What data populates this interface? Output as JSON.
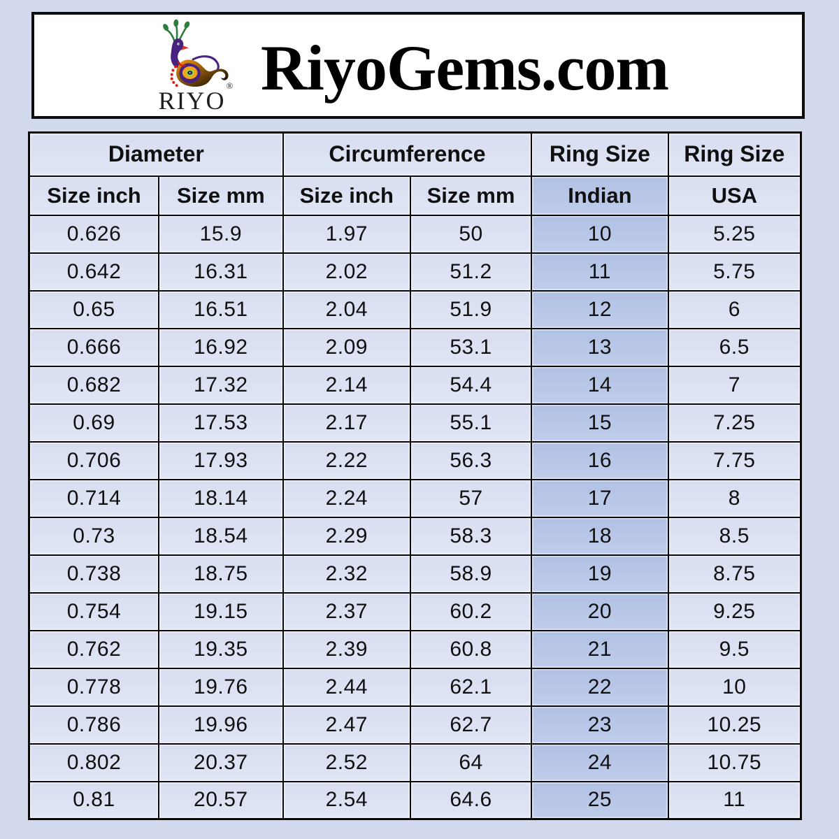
{
  "header": {
    "title": "RiyoGems.com",
    "logo": {
      "brand": "RIYO",
      "registered_mark": "®",
      "icon": "peacock-icon"
    }
  },
  "table": {
    "column_groups": [
      {
        "label": "Diameter",
        "span": 2
      },
      {
        "label": "Circumference",
        "span": 2
      },
      {
        "label": "Ring Size",
        "span": 1
      },
      {
        "label": "Ring Size",
        "span": 1
      }
    ],
    "sub_headers": [
      "Size inch",
      "Size mm",
      "Size inch",
      "Size mm",
      "Indian",
      "USA"
    ],
    "highlight_column_index": 4
  },
  "chart_data": {
    "type": "table",
    "title": "RiyoGems.com ring size conversion chart",
    "columns": [
      "Diameter Size inch",
      "Diameter Size mm",
      "Circumference Size inch",
      "Circumference Size mm",
      "Ring Size Indian",
      "Ring Size USA"
    ],
    "rows": [
      [
        0.626,
        15.9,
        1.97,
        50,
        10,
        5.25
      ],
      [
        0.642,
        16.31,
        2.02,
        51.2,
        11,
        5.75
      ],
      [
        0.65,
        16.51,
        2.04,
        51.9,
        12,
        6
      ],
      [
        0.666,
        16.92,
        2.09,
        53.1,
        13,
        6.5
      ],
      [
        0.682,
        17.32,
        2.14,
        54.4,
        14,
        7
      ],
      [
        0.69,
        17.53,
        2.17,
        55.1,
        15,
        7.25
      ],
      [
        0.706,
        17.93,
        2.22,
        56.3,
        16,
        7.75
      ],
      [
        0.714,
        18.14,
        2.24,
        57,
        17,
        8
      ],
      [
        0.73,
        18.54,
        2.29,
        58.3,
        18,
        8.5
      ],
      [
        0.738,
        18.75,
        2.32,
        58.9,
        19,
        8.75
      ],
      [
        0.754,
        19.15,
        2.37,
        60.2,
        20,
        9.25
      ],
      [
        0.762,
        19.35,
        2.39,
        60.8,
        21,
        9.5
      ],
      [
        0.778,
        19.76,
        2.44,
        62.1,
        22,
        10
      ],
      [
        0.786,
        19.96,
        2.47,
        62.7,
        23,
        10.25
      ],
      [
        0.802,
        20.37,
        2.52,
        64,
        24,
        10.75
      ],
      [
        0.81,
        20.57,
        2.54,
        64.6,
        25,
        11
      ]
    ]
  },
  "colors": {
    "page_background": "#d4daee",
    "cell_background": "#dce2f2",
    "highlight_cell_background": "#b7c6e7",
    "header_box_background": "#ffffff",
    "border": "#0a0a0a",
    "text": "#101010"
  }
}
